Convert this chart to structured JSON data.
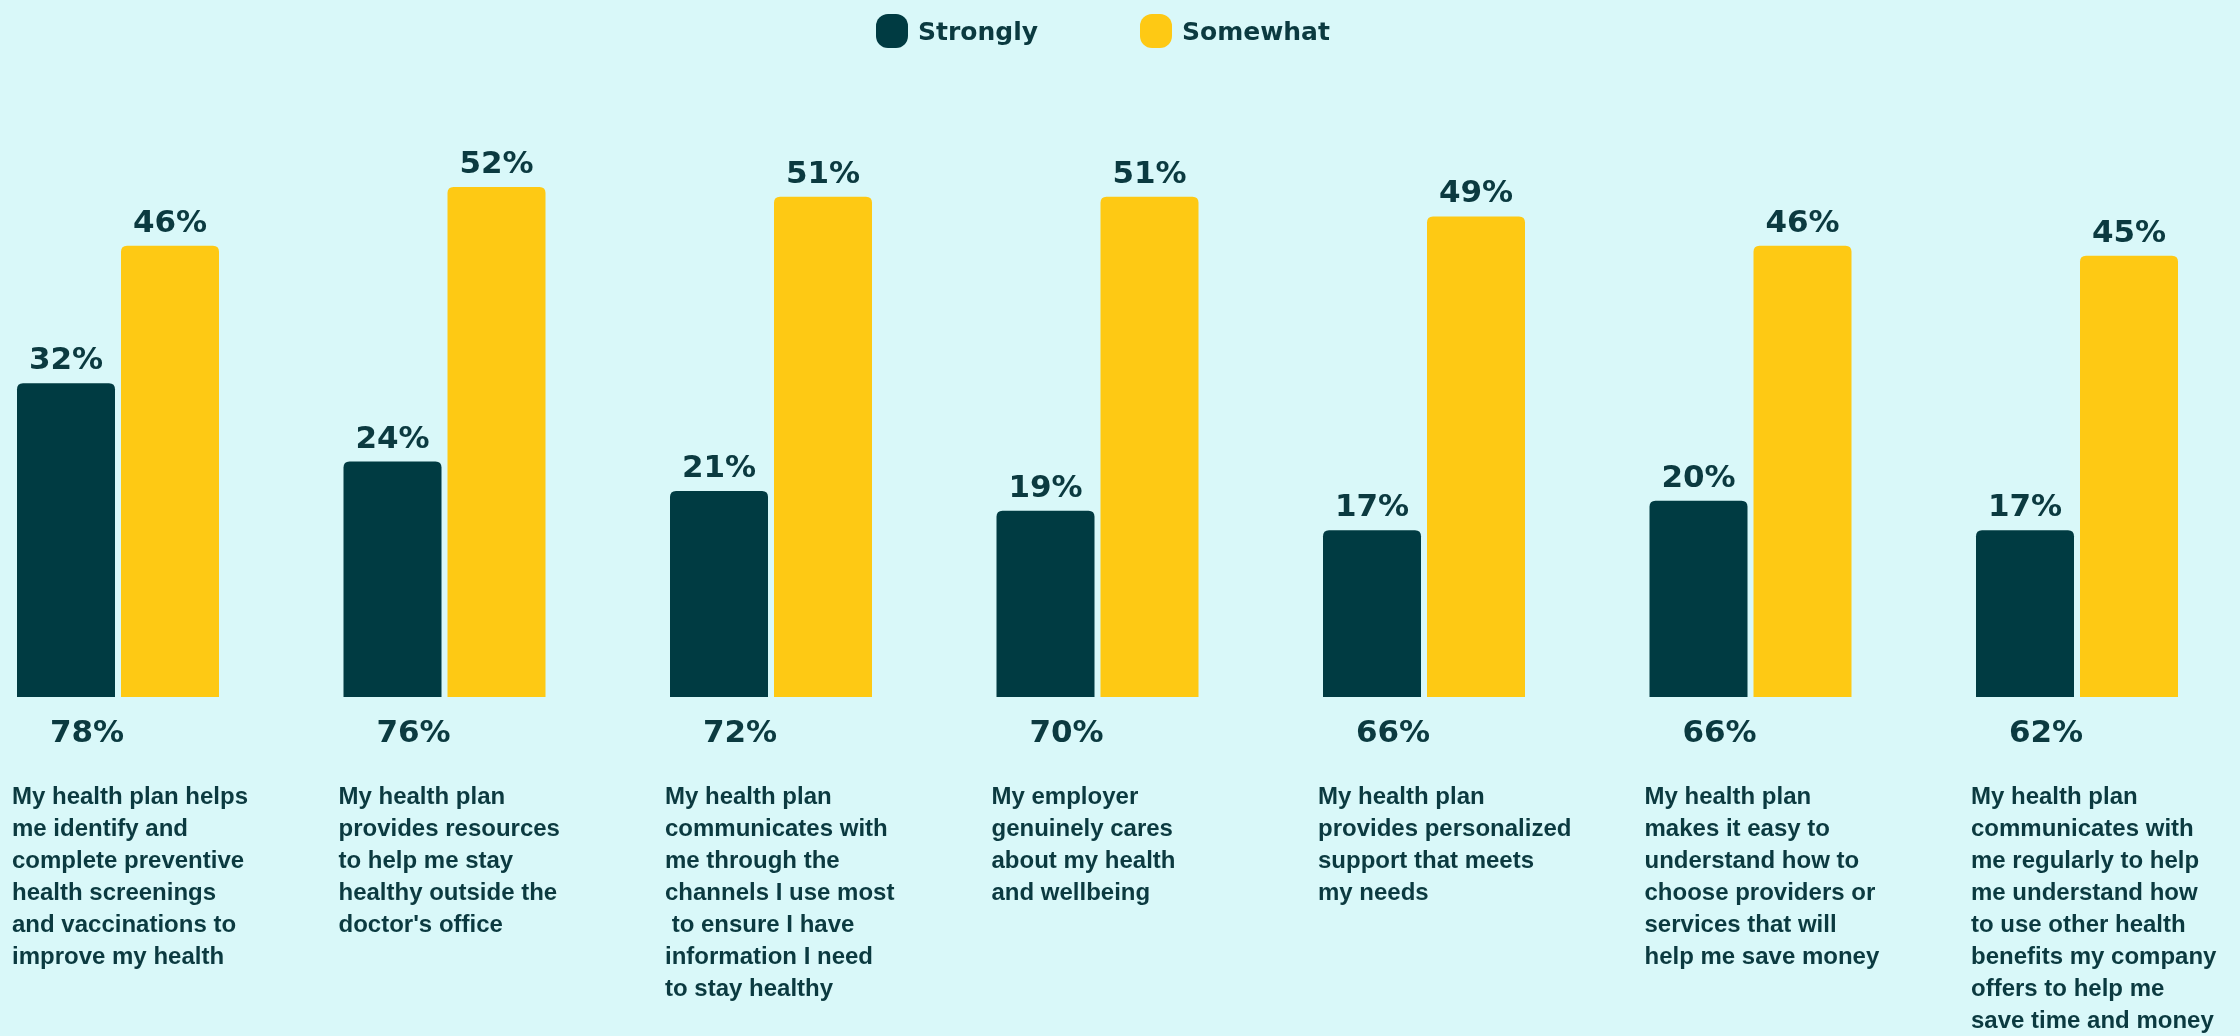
{
  "chart_data": {
    "type": "bar",
    "categories": [
      "My health plan helps\nme identify and\ncomplete preventive\nhealth screenings\nand vaccinations to\nimprove my health",
      "My health plan\nprovides resources\nto help me stay\nhealthy outside the\ndoctor's office",
      "My health plan\ncommunicates with\nme through the\nchannels I use most\n to ensure I have\ninformation I need\nto stay healthy",
      "My employer\ngenuinely cares\nabout my health\nand wellbeing",
      "My health plan\nprovides personalized\nsupport that meets\nmy needs",
      "My health plan\nmakes it easy to\nunderstand how to\nchoose providers or\nservices that will\nhelp me save money",
      "My health plan\ncommunicates with\nme regularly to help\nme understand how\nto use other health\nbenefits my company\noffers to help me\nsave time and money"
    ],
    "series": [
      {
        "name": "Strongly",
        "color": "#003b42",
        "values": [
          32,
          24,
          21,
          19,
          17,
          20,
          17
        ],
        "value_labels": [
          "32%",
          "24%",
          "21%",
          "19%",
          "17%",
          "20%",
          "17%"
        ]
      },
      {
        "name": "Somewhat",
        "color": "#fec914",
        "values": [
          46,
          52,
          51,
          51,
          49,
          46,
          45
        ],
        "value_labels": [
          "46%",
          "52%",
          "51%",
          "51%",
          "49%",
          "46%",
          "45%"
        ]
      }
    ],
    "totals": [
      "78%",
      "76%",
      "72%",
      "70%",
      "66%",
      "66%",
      "62%"
    ],
    "legend": "top"
  }
}
